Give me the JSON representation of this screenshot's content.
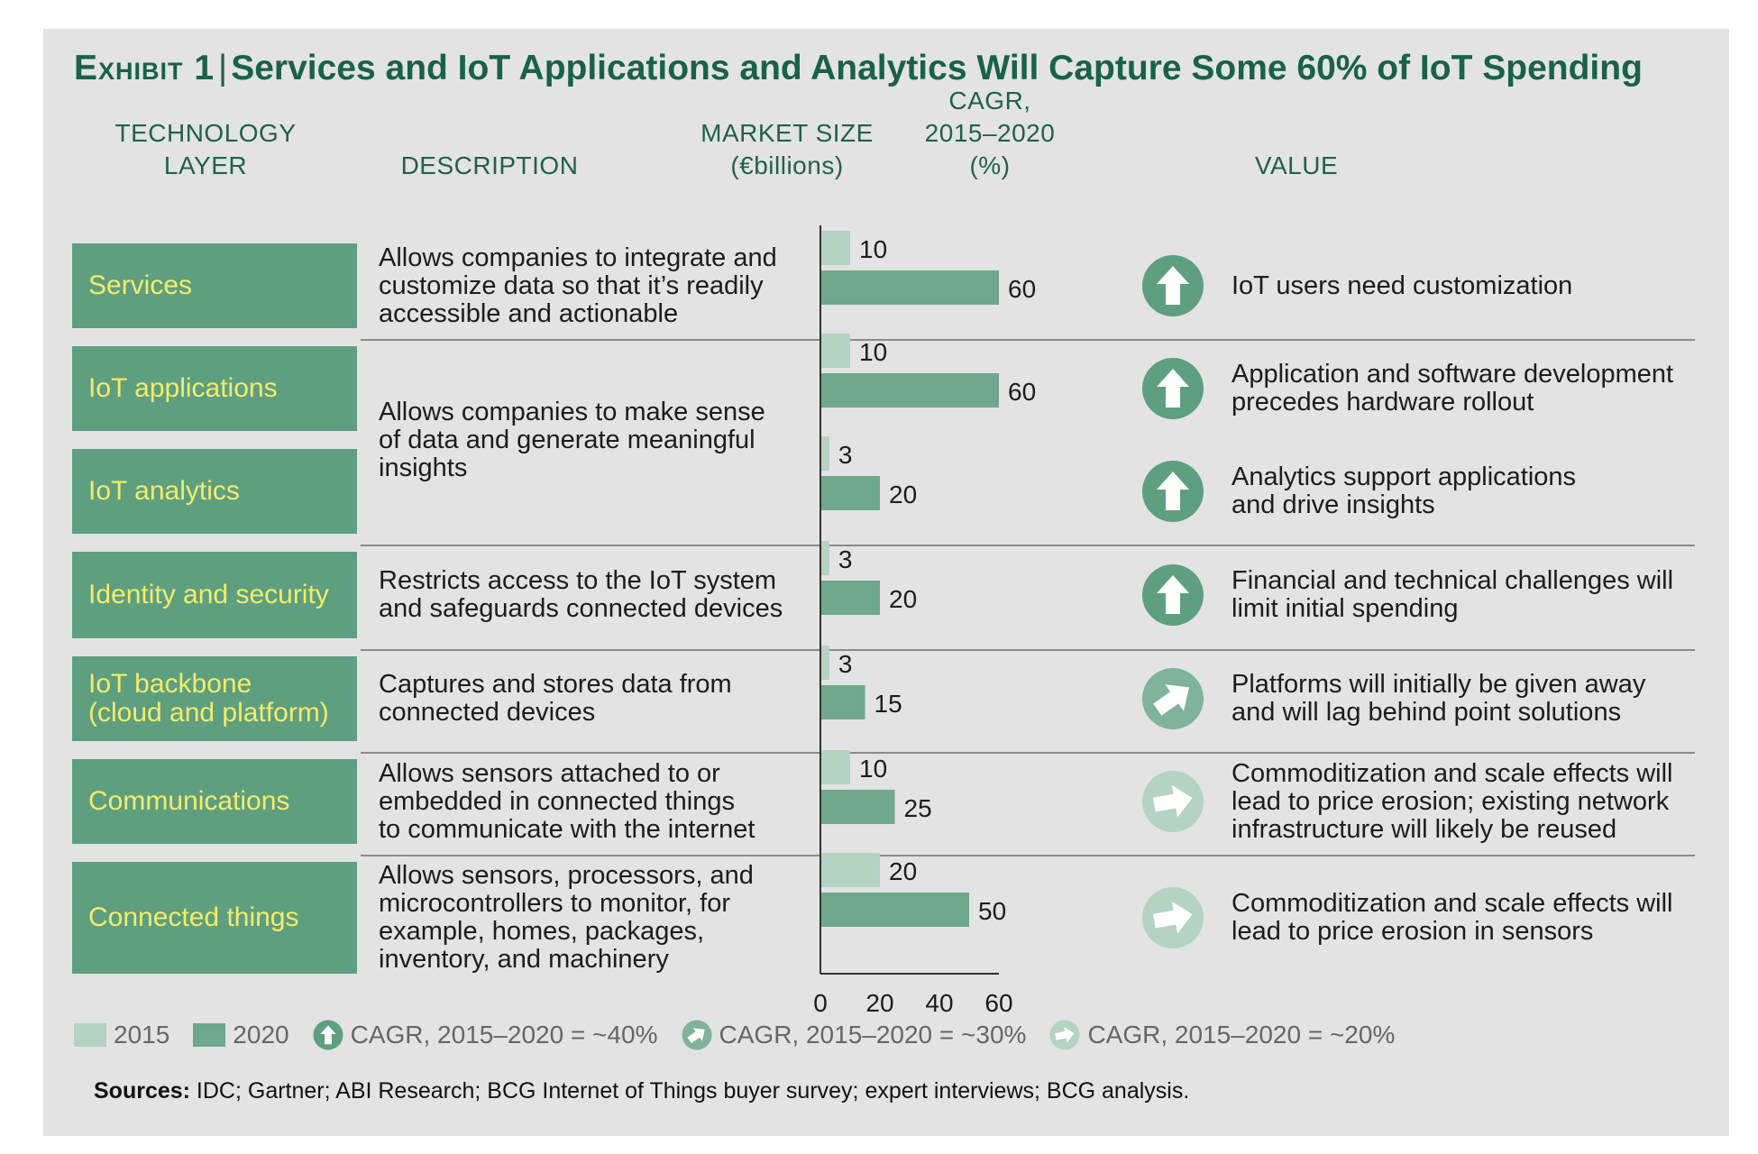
{
  "title": {
    "exhibit": "Exhibit 1",
    "separator": "|",
    "text": "Services and IoT Applications and Analytics Will Capture Some 60% of IoT Spending"
  },
  "headers": {
    "layer": [
      "TECHNOLOGY",
      "LAYER"
    ],
    "description": "DESCRIPTION",
    "market": [
      "MARKET SIZE",
      "(€billions)"
    ],
    "cagr": [
      "CAGR,",
      "2015–2020",
      "(%)"
    ],
    "value": "VALUE"
  },
  "rows": [
    {
      "layer": [
        "Services"
      ],
      "description": [
        "Allows companies to integrate and",
        "customize data so that it’s readily",
        "accessible and actionable"
      ],
      "value": [
        "IoT users need customization"
      ],
      "arrow": "up-arrow-icon"
    },
    {
      "layer": [
        "IoT applications"
      ],
      "description": [
        "Allows companies to make sense",
        "of data and generate meaningful",
        "insights"
      ],
      "value": [
        "Application and software development",
        "precedes hardware rollout"
      ],
      "arrow": "up-arrow-icon"
    },
    {
      "layer": [
        "IoT analytics"
      ],
      "description": [],
      "value": [
        "Analytics support applications",
        "and drive insights"
      ],
      "arrow": "up-arrow-icon"
    },
    {
      "layer": [
        "Identity and security"
      ],
      "description": [
        "Restricts access to the IoT system",
        "and safeguards connected devices"
      ],
      "value": [
        "Financial and technical challenges will",
        "limit initial spending"
      ],
      "arrow": "up-arrow-icon"
    },
    {
      "layer": [
        "IoT backbone",
        "(cloud and platform)"
      ],
      "description": [
        "Captures and stores data from",
        "connected devices"
      ],
      "value": [
        "Platforms will initially be given away",
        "and will lag behind point solutions"
      ],
      "arrow": "diagonal-arrow-icon"
    },
    {
      "layer": [
        "Communications"
      ],
      "description": [
        "Allows sensors attached to or",
        "embedded in connected things",
        "to communicate with the internet"
      ],
      "value": [
        "Commoditization and scale effects will",
        "lead to price erosion; existing network",
        "infrastructure will likely be reused"
      ],
      "arrow": "right-arrow-icon"
    },
    {
      "layer": [
        "Connected things"
      ],
      "description": [
        "Allows sensors, processors, and",
        "microcontrollers to monitor, for",
        "example, homes, packages,",
        "inventory, and machinery"
      ],
      "value": [
        "Commoditization and scale effects will",
        "lead to price erosion in sensors"
      ],
      "arrow": "right-arrow-icon"
    }
  ],
  "chart_data": {
    "type": "bar",
    "orientation": "horizontal",
    "categories": [
      "Services",
      "IoT applications",
      "IoT analytics",
      "Identity and security",
      "IoT backbone (cloud and platform)",
      "Communications",
      "Connected things"
    ],
    "series": [
      {
        "name": "2015",
        "values": [
          10,
          10,
          3,
          3,
          3,
          10,
          20
        ],
        "color": "#b4d3c2"
      },
      {
        "name": "2020",
        "values": [
          60,
          60,
          20,
          20,
          15,
          25,
          50
        ],
        "color": "#6fa88d"
      }
    ],
    "xlim": [
      0,
      60
    ],
    "xticks": [
      0,
      20,
      40,
      60
    ],
    "cagr_arrows": [
      "~40%",
      "~40%",
      "~40%",
      "~40%",
      "~30%",
      "~20%",
      "~20%"
    ]
  },
  "legend": {
    "items": [
      {
        "label": "2015",
        "kind": "swatch",
        "color": "#b4d3c2"
      },
      {
        "label": "2020",
        "kind": "swatch",
        "color": "#6fa88d"
      },
      {
        "label": "CAGR, 2015–2020 = ~40%",
        "kind": "up-arrow-icon"
      },
      {
        "label": "CAGR, 2015–2020 = ~30%",
        "kind": "diagonal-arrow-icon"
      },
      {
        "label": "CAGR, 2015–2020 = ~20%",
        "kind": "right-arrow-icon"
      }
    ]
  },
  "sources": {
    "label": "Sources:",
    "text": " IDC; Gartner; ABI Research; BCG Internet of Things buyer survey; expert interviews; BCG analysis."
  },
  "colors": {
    "panel": "#e3e3e3",
    "title": "#19614a",
    "layer_bg": "#5e9f80",
    "layer_text": "#f4ec6a",
    "up_circle": "#5e9f80",
    "diag_circle": "#7fb39b",
    "right_circle": "#b4d3c2"
  }
}
